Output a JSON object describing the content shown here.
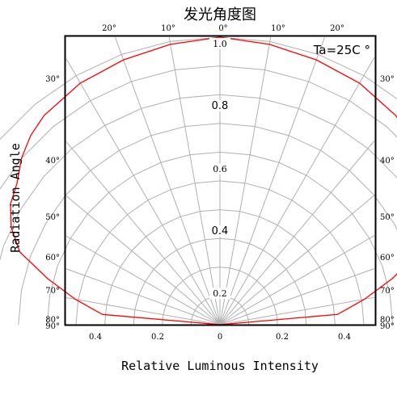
{
  "chart_data": {
    "type": "line",
    "title": "发光角度图",
    "ylabel": "Radiation Angle",
    "xlabel": "Relative Luminous Intensity",
    "annotation": "Ta=25C °",
    "grid": true,
    "radial_ticks": [
      "0.2",
      "0.4",
      "0.6",
      "0.8",
      "1.0"
    ],
    "top_angle_ticks": [
      "20°",
      "10°",
      "0°",
      "10°",
      "20°"
    ],
    "left_angle_ticks": [
      "30°",
      "40°",
      "50°",
      "60°",
      "70°",
      "80°",
      "90°"
    ],
    "right_angle_ticks": [
      "30°",
      "40°",
      "50°",
      "60°",
      "70°",
      "80°",
      "90°"
    ],
    "bottom_ticks": [
      "0.4",
      "0.2",
      "0",
      "0.2",
      "0.4"
    ],
    "series": [
      {
        "color": "#ff0000",
        "x": [
          0,
          10,
          20,
          30,
          40,
          45,
          50,
          55,
          60,
          65,
          70,
          75,
          80,
          85,
          90
        ],
        "y": [
          1.0,
          0.99,
          0.98,
          0.97,
          0.95,
          0.93,
          0.9,
          0.86,
          0.84,
          0.8,
          0.74,
          0.62,
          0.51,
          0.41,
          0.0
        ]
      }
    ]
  },
  "colors": {
    "curve": "#ff0000",
    "grid": "#b0b0b0",
    "frame": "#000000"
  }
}
